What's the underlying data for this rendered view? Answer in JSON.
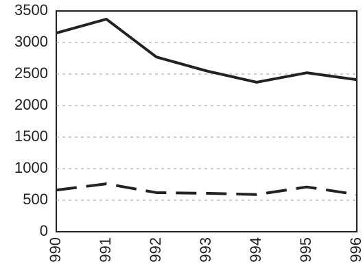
{
  "chart_data": {
    "type": "line",
    "categories": [
      "990",
      "991",
      "992",
      "993",
      "994",
      "995",
      "996"
    ],
    "series": [
      {
        "color": "#222222",
        "line_style": "solid",
        "values": [
          3150,
          3370,
          2770,
          2550,
          2370,
          2520,
          2410
        ]
      },
      {
        "color": "#222222",
        "line_style": "dashed",
        "values": [
          660,
          760,
          620,
          610,
          590,
          710,
          590
        ]
      }
    ],
    "ylim": [
      0,
      3500
    ],
    "yticks": [
      0,
      500,
      1000,
      1500,
      2000,
      2500,
      3000,
      3500
    ],
    "grid": true
  }
}
